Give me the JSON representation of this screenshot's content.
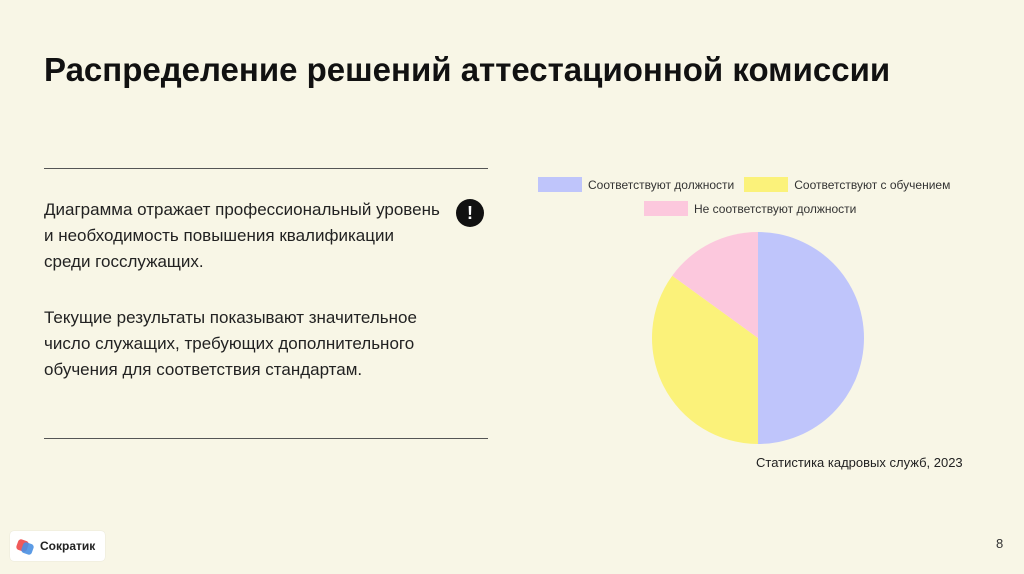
{
  "slide": {
    "title": "Распределение решений аттестационной комиссии",
    "paragraph1": "Диаграмма отражает профессиональный уровень и необходимость повышения квалификации среди госслужащих.",
    "paragraph2": "Текущие результаты показывают значительное число служащих, требующих дополнительного обучения для соответствия стандартам.",
    "alert_icon": "!",
    "source": "Статистика кадровых служб, 2023",
    "page_number": "8",
    "logo_text": "Сократик"
  },
  "colors": {
    "background": "#f8f6e6",
    "slice1": "#bfc5fb",
    "slice2": "#fbf27a",
    "slice3": "#fcc8dd"
  },
  "chart_data": {
    "type": "pie",
    "categories": [
      "Соответствуют должности",
      "Соответствуют с обучением",
      "Не соответствуют должности"
    ],
    "values": [
      50,
      35,
      15
    ],
    "colors": [
      "#bfc5fb",
      "#fbf27a",
      "#fcc8dd"
    ],
    "legend_position": "top",
    "start_angle": "12 o'clock",
    "direction": "clockwise"
  }
}
